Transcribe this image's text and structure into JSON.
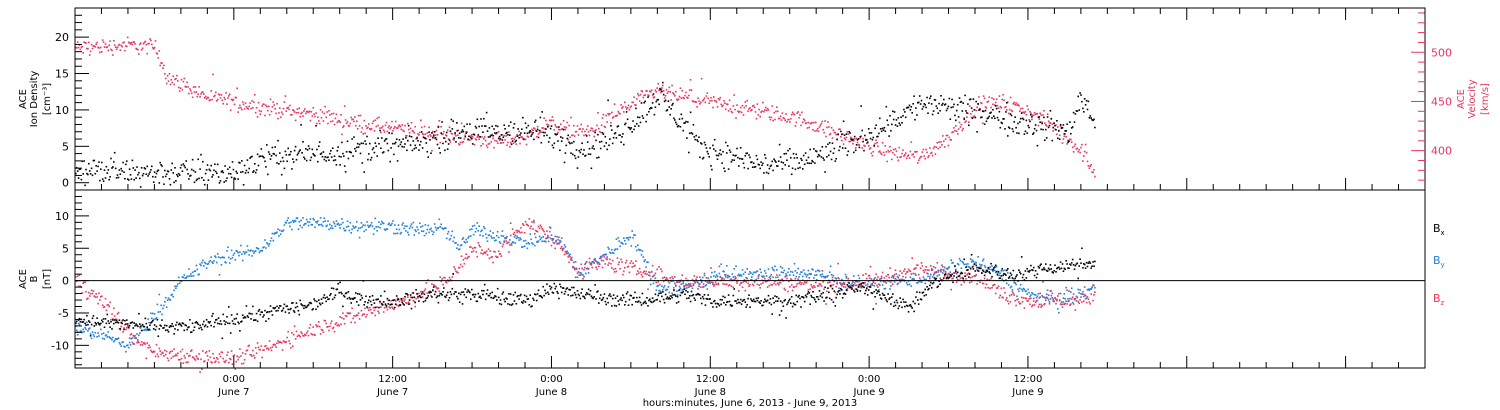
{
  "colors": {
    "black": "#000000",
    "pink": "#e8365d",
    "blue": "#1f7fdc",
    "frame": "#000000"
  },
  "x_axis": {
    "range_hours": [
      -12,
      90
    ],
    "ticks": [
      {
        "hour": 0,
        "time": "0:00",
        "day": "June 7"
      },
      {
        "hour": 12,
        "time": "12:00",
        "day": "June 7"
      },
      {
        "hour": 24,
        "time": "0:00",
        "day": "June 8"
      },
      {
        "hour": 36,
        "time": "12:00",
        "day": "June 8"
      },
      {
        "hour": 48,
        "time": "0:00",
        "day": "June 9"
      },
      {
        "hour": 60,
        "time": "12:00",
        "day": "June 9"
      }
    ],
    "title": "hours:minutes, June  6, 2013 - June  9, 2013"
  },
  "chart_data": [
    {
      "type": "scatter",
      "panel": "top",
      "ylabel_left": [
        "ACE",
        "Ion Density",
        "[cm⁻³]"
      ],
      "ylabel_right": [
        "ACE",
        "Velocity",
        "[km/s]"
      ],
      "ylim_left": [
        -1,
        24
      ],
      "yticks_left": [
        0,
        5,
        10,
        15,
        20
      ],
      "ylim_right": [
        360,
        545
      ],
      "yticks_right": [
        400,
        450,
        500
      ],
      "series": [
        {
          "axis": "left",
          "color": "black",
          "jitter": 1.4,
          "points": [
            [
              -12,
              2
            ],
            [
              -9,
              1.5
            ],
            [
              -6,
              1.5
            ],
            [
              -3,
              1.5
            ],
            [
              0,
              1.5
            ],
            [
              1,
              2.5
            ],
            [
              2.5,
              3.5
            ],
            [
              5,
              4
            ],
            [
              8,
              4.5
            ],
            [
              11,
              5
            ],
            [
              14,
              5.5
            ],
            [
              17,
              7
            ],
            [
              20,
              7
            ],
            [
              23,
              7
            ],
            [
              25,
              6
            ],
            [
              26,
              5
            ],
            [
              27,
              5
            ],
            [
              29,
              7
            ],
            [
              31,
              10
            ],
            [
              32,
              12
            ],
            [
              34,
              8
            ],
            [
              35,
              5
            ],
            [
              37,
              4
            ],
            [
              40,
              2.5
            ],
            [
              43,
              3
            ],
            [
              46,
              5
            ],
            [
              48,
              7
            ],
            [
              50,
              9
            ],
            [
              52,
              11
            ],
            [
              55,
              10
            ],
            [
              58,
              9
            ],
            [
              61,
              8
            ],
            [
              63,
              7
            ],
            [
              64,
              12
            ],
            [
              65,
              8.5
            ]
          ]
        },
        {
          "axis": "right",
          "color": "pink",
          "jitter": 6,
          "points": [
            [
              -12,
              505
            ],
            [
              -8,
              508
            ],
            [
              -6,
              506
            ],
            [
              -5,
              475
            ],
            [
              -2,
              455
            ],
            [
              0,
              450
            ],
            [
              2,
              445
            ],
            [
              5,
              440
            ],
            [
              8,
              432
            ],
            [
              11,
              425
            ],
            [
              14,
              420
            ],
            [
              17,
              415
            ],
            [
              20,
              410
            ],
            [
              22,
              415
            ],
            [
              24,
              430
            ],
            [
              25,
              422
            ],
            [
              27,
              420
            ],
            [
              29,
              440
            ],
            [
              31,
              455
            ],
            [
              32,
              462
            ],
            [
              33,
              458
            ],
            [
              36,
              450
            ],
            [
              38,
              445
            ],
            [
              40,
              440
            ],
            [
              43,
              432
            ],
            [
              46,
              415
            ],
            [
              48,
              405
            ],
            [
              50,
              398
            ],
            [
              52,
              395
            ],
            [
              54,
              415
            ],
            [
              56,
              445
            ],
            [
              58,
              450
            ],
            [
              60,
              440
            ],
            [
              62,
              425
            ],
            [
              64,
              400
            ],
            [
              65,
              380
            ]
          ]
        }
      ]
    },
    {
      "type": "scatter",
      "panel": "bottom",
      "ylabel_left": [
        "ACE",
        "B",
        "[nT]"
      ],
      "ylim": [
        -13.5,
        14
      ],
      "yticks": [
        -10,
        -5,
        0,
        5,
        10
      ],
      "zero_line": true,
      "series": [
        {
          "name": "Bₓ",
          "color": "black",
          "jitter": 0.8,
          "points": [
            [
              -12,
              -6
            ],
            [
              -9,
              -6.5
            ],
            [
              -6,
              -7
            ],
            [
              -3,
              -7
            ],
            [
              0,
              -6
            ],
            [
              3,
              -4.5
            ],
            [
              6,
              -3.5
            ],
            [
              8,
              -1.5
            ],
            [
              10,
              -3
            ],
            [
              12,
              -3
            ],
            [
              15,
              -2
            ],
            [
              18,
              -2
            ],
            [
              20,
              -2.5
            ],
            [
              22,
              -3
            ],
            [
              24,
              -1
            ],
            [
              26,
              -2
            ],
            [
              28,
              -2.5
            ],
            [
              30,
              -3
            ],
            [
              32,
              -2.5
            ],
            [
              34,
              -2
            ],
            [
              36,
              -3
            ],
            [
              39,
              -3
            ],
            [
              42,
              -3
            ],
            [
              45,
              -2
            ],
            [
              47,
              -1
            ],
            [
              49,
              -2
            ],
            [
              51,
              -4
            ],
            [
              53,
              0
            ],
            [
              56,
              2
            ],
            [
              59,
              1
            ],
            [
              61,
              2
            ],
            [
              63,
              2.5
            ],
            [
              65,
              3
            ]
          ]
        },
        {
          "name": "Bᵧ",
          "color": "blue",
          "jitter": 0.8,
          "points": [
            [
              -12,
              -7
            ],
            [
              -9,
              -9
            ],
            [
              -8,
              -10
            ],
            [
              -6,
              -5
            ],
            [
              -4,
              0
            ],
            [
              -2,
              3
            ],
            [
              0,
              4
            ],
            [
              2,
              5
            ],
            [
              3,
              7
            ],
            [
              4,
              9
            ],
            [
              7,
              9
            ],
            [
              10,
              8.5
            ],
            [
              12,
              8.5
            ],
            [
              14,
              8
            ],
            [
              16,
              8
            ],
            [
              17,
              5
            ],
            [
              18,
              8
            ],
            [
              20,
              7
            ],
            [
              22,
              6
            ],
            [
              24,
              7
            ],
            [
              25,
              5
            ],
            [
              26,
              1
            ],
            [
              28,
              4
            ],
            [
              30,
              7.5
            ],
            [
              31,
              3
            ],
            [
              32,
              -1
            ],
            [
              34,
              -1
            ],
            [
              36,
              0.5
            ],
            [
              38,
              1
            ],
            [
              40,
              1
            ],
            [
              42,
              1.5
            ],
            [
              44,
              1
            ],
            [
              46,
              0
            ],
            [
              48,
              -0.5
            ],
            [
              50,
              0
            ],
            [
              52,
              0.5
            ],
            [
              54,
              2
            ],
            [
              56,
              3
            ],
            [
              58,
              1
            ],
            [
              60,
              -2
            ],
            [
              62,
              -3
            ],
            [
              64,
              -2
            ],
            [
              65,
              -1
            ]
          ]
        },
        {
          "name": "B_z",
          "color": "pink",
          "jitter": 0.9,
          "points": [
            [
              -12,
              0
            ],
            [
              -10,
              -3
            ],
            [
              -8,
              -8
            ],
            [
              -6,
              -11
            ],
            [
              -3,
              -11.5
            ],
            [
              0,
              -12
            ],
            [
              3,
              -10
            ],
            [
              5,
              -8
            ],
            [
              8,
              -6
            ],
            [
              11,
              -4
            ],
            [
              13,
              -3
            ],
            [
              16,
              0
            ],
            [
              18,
              5
            ],
            [
              20,
              4
            ],
            [
              21,
              7
            ],
            [
              22,
              9
            ],
            [
              24,
              7
            ],
            [
              26,
              2
            ],
            [
              28,
              3
            ],
            [
              30,
              2
            ],
            [
              32,
              1
            ],
            [
              33,
              0
            ],
            [
              36,
              0
            ],
            [
              40,
              0
            ],
            [
              44,
              -0.5
            ],
            [
              48,
              0
            ],
            [
              50,
              1
            ],
            [
              52,
              2
            ],
            [
              54,
              1
            ],
            [
              56,
              1
            ],
            [
              58,
              -2
            ],
            [
              60,
              -3
            ],
            [
              62,
              -3
            ],
            [
              64,
              -3
            ],
            [
              65,
              -2
            ]
          ]
        }
      ],
      "legend": [
        {
          "label": "B",
          "sub": "x",
          "color": "black"
        },
        {
          "label": "B",
          "sub": "y",
          "color": "blue"
        },
        {
          "label": "B",
          "sub": "z",
          "color": "pink"
        }
      ]
    }
  ]
}
